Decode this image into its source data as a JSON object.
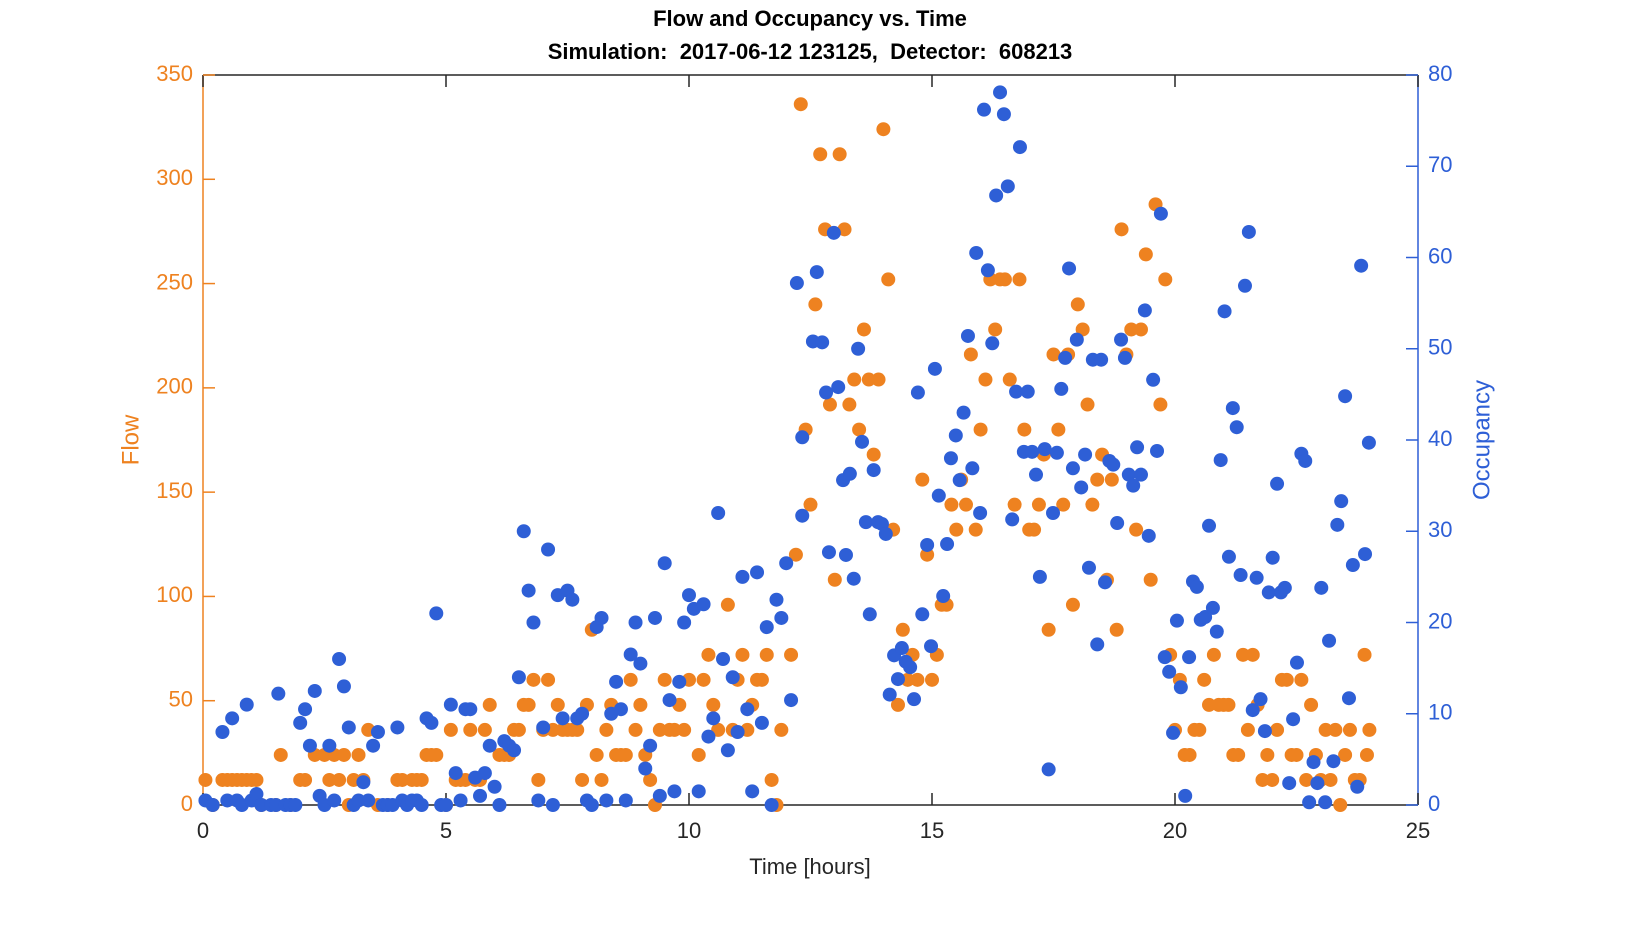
{
  "chart_data": {
    "type": "scatter",
    "title": "Flow and Occupancy vs. Time",
    "subtitle": "Simulation:  2017-06-12 123125,  Detector:  608213",
    "xlabel": "Time [hours]",
    "ylabel": "Flow",
    "y2label": "Occupancy",
    "xlim": [
      0,
      25
    ],
    "xticks": [
      0,
      5,
      10,
      15,
      20,
      25
    ],
    "ylim": [
      0,
      350
    ],
    "yticks": [
      0,
      50,
      100,
      150,
      200,
      250,
      300,
      350
    ],
    "y2lim": [
      0,
      80
    ],
    "y2ticks": [
      0,
      10,
      20,
      30,
      40,
      50,
      60,
      70,
      80
    ],
    "ycolor": "#ee8220",
    "y2color": "#2e5fd6",
    "series": [
      {
        "color": "#ee8220",
        "axis": "y",
        "x": [
          0.05,
          0.2,
          0.4,
          0.5,
          0.6,
          0.7,
          0.8,
          0.9,
          1.0,
          1.1,
          1.2,
          1.5,
          1.8,
          1.6,
          2.0,
          2.1,
          2.3,
          2.5,
          2.6,
          2.7,
          2.8,
          2.9,
          3.0,
          3.1,
          3.2,
          3.3,
          3.4,
          3.6,
          3.8,
          4.0,
          4.1,
          4.3,
          4.4,
          4.5,
          4.6,
          4.7,
          4.8,
          5.0,
          5.1,
          5.2,
          5.3,
          5.4,
          5.5,
          5.6,
          5.7,
          5.8,
          5.9,
          6.1,
          6.2,
          6.3,
          6.4,
          6.5,
          6.6,
          6.7,
          6.8,
          6.9,
          7.0,
          7.1,
          7.2,
          7.3,
          7.4,
          7.5,
          7.6,
          7.7,
          7.8,
          7.9,
          8.0,
          8.1,
          8.2,
          8.3,
          8.4,
          8.5,
          8.6,
          8.7,
          8.8,
          8.9,
          9.0,
          9.1,
          9.2,
          9.3,
          9.4,
          9.5,
          9.6,
          9.7,
          9.8,
          9.9,
          10.0,
          10.2,
          10.3,
          10.4,
          10.5,
          10.6,
          10.8,
          10.9,
          11.0,
          11.1,
          11.2,
          11.3,
          11.4,
          11.5,
          11.6,
          11.7,
          11.8,
          11.9,
          12.1,
          12.2,
          12.3,
          12.4,
          12.5,
          12.6,
          12.7,
          12.8,
          12.9,
          13.0,
          13.1,
          13.2,
          13.3,
          13.4,
          13.5,
          13.6,
          13.7,
          13.8,
          13.9,
          14.0,
          14.1,
          14.2,
          14.3,
          14.4,
          14.5,
          14.6,
          14.7,
          14.8,
          14.9,
          15.0,
          15.1,
          15.2,
          15.3,
          15.4,
          15.5,
          15.6,
          15.7,
          15.8,
          15.9,
          16.0,
          16.1,
          16.2,
          16.3,
          16.4,
          16.5,
          16.6,
          16.7,
          16.8,
          16.9,
          17.0,
          17.1,
          17.2,
          17.3,
          17.4,
          17.5,
          17.6,
          17.7,
          17.8,
          17.9,
          18.0,
          18.1,
          18.2,
          18.3,
          18.4,
          18.5,
          18.6,
          18.7,
          18.8,
          18.9,
          19.0,
          19.1,
          19.2,
          19.3,
          19.4,
          19.5,
          19.6,
          19.7,
          19.8,
          19.9,
          20.0,
          20.1,
          20.2,
          20.3,
          20.4,
          20.5,
          20.6,
          20.7,
          20.8,
          20.9,
          21.0,
          21.1,
          21.2,
          21.3,
          21.4,
          21.5,
          21.6,
          21.7,
          21.8,
          21.9,
          22.0,
          22.1,
          22.2,
          22.3,
          22.4,
          22.5,
          22.6,
          22.7,
          22.8,
          22.9,
          23.0,
          23.1,
          23.2,
          23.3,
          23.4,
          23.5,
          23.6,
          23.7,
          23.8,
          23.9,
          24.0,
          23.95
        ],
        "values": [
          12,
          0,
          12,
          12,
          12,
          12,
          12,
          12,
          12,
          12,
          0,
          0,
          0,
          24,
          12,
          12,
          24,
          24,
          12,
          24,
          12,
          24,
          0,
          12,
          24,
          12,
          36,
          0,
          0,
          12,
          12,
          12,
          12,
          12,
          24,
          24,
          24,
          0,
          36,
          12,
          12,
          12,
          36,
          12,
          12,
          36,
          48,
          24,
          24,
          24,
          36,
          36,
          48,
          48,
          60,
          12,
          36,
          60,
          36,
          48,
          36,
          36,
          36,
          36,
          12,
          48,
          84,
          24,
          12,
          36,
          48,
          24,
          24,
          24,
          60,
          36,
          48,
          24,
          12,
          0,
          36,
          60,
          36,
          36,
          48,
          36,
          60,
          24,
          60,
          72,
          48,
          36,
          96,
          36,
          60,
          72,
          36,
          48,
          60,
          60,
          72,
          12,
          0,
          36,
          72,
          120,
          336,
          180,
          144,
          240,
          312,
          276,
          192,
          108,
          312,
          276,
          192,
          204,
          180,
          228,
          204,
          168,
          204,
          324,
          252,
          132,
          48,
          84,
          60,
          72,
          60,
          156,
          120,
          60,
          72,
          96,
          96,
          144,
          132,
          156,
          144,
          216,
          132,
          180,
          204,
          252,
          228,
          252,
          252,
          204,
          144,
          252,
          180,
          132,
          132,
          144,
          168,
          84,
          216,
          180,
          144,
          216,
          96,
          240,
          228,
          192,
          144,
          156,
          168,
          108,
          156,
          84,
          276,
          216,
          228,
          132,
          228,
          264,
          108,
          288,
          192,
          252,
          72,
          36,
          60,
          24,
          24,
          36,
          36,
          60,
          48,
          72,
          48,
          48,
          48,
          24,
          24,
          72,
          36,
          72,
          48,
          12,
          24,
          12,
          36,
          60,
          60,
          24,
          24,
          60,
          12,
          48,
          24,
          12,
          36,
          12,
          36,
          0,
          24,
          36,
          12,
          12,
          72,
          36,
          24
        ]
      },
      {
        "color": "#2e5fd6",
        "axis": "y2",
        "x": [
          0.05,
          0.2,
          0.4,
          0.5,
          0.6,
          0.7,
          0.8,
          0.9,
          1.0,
          1.1,
          1.2,
          1.4,
          1.5,
          1.55,
          1.7,
          1.8,
          1.9,
          2.0,
          2.1,
          2.2,
          2.3,
          2.4,
          2.5,
          2.6,
          2.7,
          2.8,
          2.9,
          3.0,
          3.1,
          3.2,
          3.3,
          3.4,
          3.5,
          3.6,
          3.7,
          3.8,
          3.9,
          4.0,
          4.1,
          4.2,
          4.3,
          4.4,
          4.5,
          4.6,
          4.7,
          4.8,
          4.9,
          5.0,
          5.1,
          5.2,
          5.3,
          5.4,
          5.5,
          5.6,
          5.7,
          5.8,
          5.9,
          6.0,
          6.1,
          6.2,
          6.3,
          6.4,
          6.5,
          6.6,
          6.7,
          6.8,
          6.9,
          7.0,
          7.1,
          7.2,
          7.3,
          7.4,
          7.5,
          7.6,
          7.7,
          7.8,
          7.9,
          8.0,
          8.1,
          8.2,
          8.3,
          8.4,
          8.5,
          8.6,
          8.7,
          8.8,
          8.9,
          9.0,
          9.1,
          9.2,
          9.3,
          9.4,
          9.5,
          9.6,
          9.7,
          9.8,
          9.9,
          10.0,
          10.1,
          10.2,
          10.3,
          10.4,
          10.5,
          10.6,
          10.7,
          10.8,
          10.9,
          11.0,
          11.1,
          11.2,
          11.3,
          11.4,
          11.5,
          11.6,
          11.7,
          11.8,
          11.9,
          12.0,
          12.1,
          12.22,
          12.33,
          12.33,
          12.63,
          12.55,
          12.74,
          12.82,
          12.88,
          12.98,
          13.07,
          13.17,
          13.23,
          13.31,
          13.39,
          13.48,
          13.56,
          13.64,
          13.72,
          13.8,
          13.89,
          13.97,
          14.05,
          14.13,
          14.22,
          14.3,
          14.38,
          14.46,
          14.55,
          14.63,
          14.71,
          14.8,
          14.9,
          14.98,
          15.06,
          15.14,
          15.23,
          15.31,
          15.39,
          15.49,
          15.57,
          15.65,
          15.74,
          15.83,
          15.91,
          15.99,
          16.07,
          16.15,
          16.24,
          16.32,
          16.4,
          16.48,
          16.56,
          16.65,
          16.73,
          16.81,
          16.89,
          16.97,
          17.06,
          17.14,
          17.22,
          17.32,
          17.4,
          17.49,
          17.57,
          17.66,
          17.74,
          17.82,
          17.9,
          17.98,
          18.07,
          18.15,
          18.23,
          18.31,
          18.4,
          18.48,
          18.56,
          18.65,
          18.73,
          18.81,
          18.89,
          18.97,
          19.05,
          19.14,
          19.22,
          19.3,
          19.38,
          19.46,
          19.55,
          19.63,
          19.71,
          19.79,
          19.88,
          19.96,
          20.04,
          20.12,
          20.21,
          20.29,
          20.37,
          20.45,
          20.53,
          20.62,
          20.7,
          20.78,
          20.86,
          20.94,
          21.02,
          21.11,
          21.19,
          21.27,
          21.35,
          21.44,
          21.52,
          21.6,
          21.68,
          21.76,
          21.85,
          21.93,
          22.01,
          22.1,
          22.18,
          22.26,
          22.35,
          22.43,
          22.51,
          22.6,
          22.68,
          22.76,
          22.85,
          22.93,
          23.01,
          23.09,
          23.17,
          23.26,
          23.34,
          23.42,
          23.5,
          23.58,
          23.66,
          23.75,
          23.83,
          23.91,
          23.99
        ],
        "values": [
          0.5,
          0,
          8,
          0.5,
          9.5,
          0.5,
          0,
          11,
          0.5,
          1.2,
          0,
          0,
          0,
          12.2,
          0,
          0,
          0,
          9,
          10.5,
          6.5,
          12.5,
          1,
          0,
          6.5,
          0.5,
          16,
          13,
          8.5,
          0,
          0.5,
          2.5,
          0.5,
          6.5,
          8,
          0,
          0,
          0,
          8.5,
          0.5,
          0,
          0.5,
          0.5,
          0,
          9.5,
          9,
          21,
          0,
          0,
          11,
          3.5,
          0.5,
          10.5,
          10.5,
          3,
          1,
          3.5,
          6.5,
          2,
          0,
          7,
          6.5,
          6,
          14,
          30,
          23.5,
          20,
          0.5,
          8.5,
          28,
          0,
          23,
          9.5,
          23.5,
          22.5,
          9.5,
          10,
          0.5,
          0,
          19.5,
          20.5,
          0.5,
          10,
          13.5,
          10.5,
          0.5,
          16.5,
          20,
          15.5,
          4,
          6.5,
          20.5,
          1,
          26.5,
          11.5,
          1.5,
          13.5,
          20,
          23,
          21.5,
          1.5,
          22,
          7.5,
          9.5,
          32,
          16,
          6,
          14,
          8,
          25,
          10.5,
          1.5,
          25.5,
          9,
          19.5,
          0,
          22.5,
          20.5,
          26.5,
          11.5,
          57.2,
          40.3,
          31.7,
          58.4,
          50.8,
          50.7,
          45.2,
          27.7,
          62.7,
          45.8,
          35.6,
          27.4,
          36.3,
          24.8,
          50,
          39.8,
          31,
          20.9,
          36.7,
          31,
          30.8,
          29.7,
          12.1,
          16.4,
          13.8,
          17.2,
          15.7,
          15.1,
          11.6,
          45.2,
          20.9,
          28.5,
          17.4,
          47.8,
          33.9,
          22.9,
          28.6,
          38,
          40.5,
          35.6,
          43,
          51.4,
          36.9,
          60.5,
          32,
          76.2,
          58.6,
          50.6,
          66.8,
          78.1,
          75.7,
          67.8,
          31.3,
          45.3,
          72.1,
          38.7,
          45.3,
          38.7,
          36.2,
          25,
          39,
          3.9,
          32,
          38.6,
          45.6,
          49,
          58.8,
          36.9,
          51,
          34.8,
          38.4,
          26,
          48.8,
          17.6,
          48.8,
          24.4,
          37.7,
          37.3,
          30.9,
          51,
          49,
          36.2,
          35,
          39.2,
          36.2,
          54.2,
          29.5,
          46.6,
          38.8,
          64.8,
          16.2,
          14.6,
          7.9,
          20.2,
          12.9,
          1,
          16.2,
          24.5,
          23.9,
          20.3,
          20.6,
          30.6,
          21.6,
          19,
          37.8,
          54.1,
          27.2,
          43.5,
          41.4,
          25.2,
          56.9,
          62.8,
          10.4,
          24.9,
          11.6,
          8.1,
          23.3,
          27.1,
          35.2,
          23.3,
          23.8,
          2.4,
          9.4,
          15.6,
          38.5,
          37.7,
          0.3,
          4.7,
          2.4,
          23.8,
          0.3,
          18,
          4.8,
          30.7,
          33.3,
          44.8,
          11.7,
          26.3,
          2,
          59.1,
          27.5,
          39.7
        ]
      }
    ]
  }
}
